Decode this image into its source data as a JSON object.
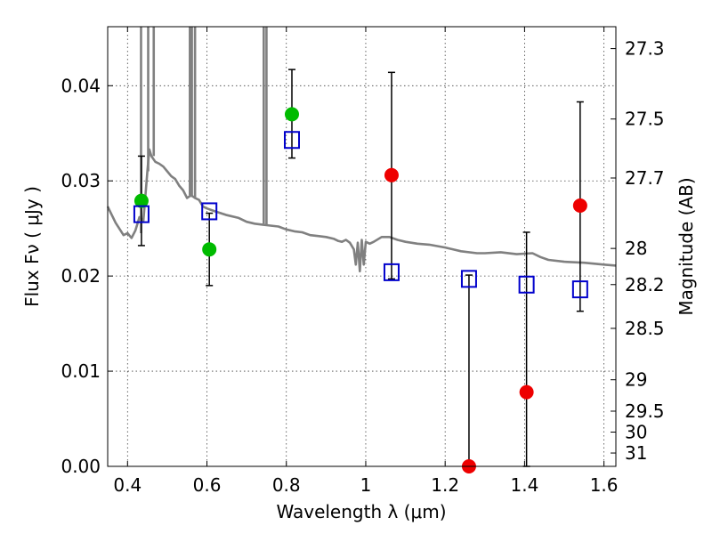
{
  "chart_data": {
    "type": "scatter",
    "xlabel": "Wavelength  λ (μm)",
    "ylabel": "Flux  Fν  ( μJy )",
    "ylabel_right": "Magnitude (AB)",
    "xlim": [
      0.35,
      1.63
    ],
    "ylim": [
      0.0,
      0.0462
    ],
    "grid": true,
    "x_ticks": [
      0.4,
      0.6,
      0.8,
      1.0,
      1.2,
      1.4,
      1.6
    ],
    "x_tick_labels": [
      "0.4",
      "0.6",
      "0.8",
      "1",
      "1.2",
      "1.4",
      "1.6"
    ],
    "y_ticks": [
      0.0,
      0.01,
      0.02,
      0.03,
      0.04
    ],
    "y_tick_labels": [
      "0.00",
      "0.01",
      "0.02",
      "0.03",
      "0.04"
    ],
    "right_ticks": [
      {
        "label": "27.3",
        "flux": 0.0439
      },
      {
        "label": "27.5",
        "flux": 0.0365
      },
      {
        "label": "27.7",
        "flux": 0.0303
      },
      {
        "label": "28",
        "flux": 0.0229
      },
      {
        "label": "28.2",
        "flux": 0.0191
      },
      {
        "label": "28.5",
        "flux": 0.0145
      },
      {
        "label": "29",
        "flux": 0.0091
      },
      {
        "label": "29.5",
        "flux": 0.0058
      },
      {
        "label": "30",
        "flux": 0.0036
      },
      {
        "label": "31",
        "flux": 0.0014
      }
    ],
    "series": [
      {
        "marker": "filled-circle",
        "color": "#00bb00",
        "points": [
          {
            "x": 0.435,
            "y": 0.0279
          },
          {
            "x": 0.606,
            "y": 0.0228
          },
          {
            "x": 0.814,
            "y": 0.037
          }
        ]
      },
      {
        "marker": "filled-circle",
        "color": "#ee0000",
        "points": [
          {
            "x": 1.065,
            "y": 0.0306
          },
          {
            "x": 1.26,
            "y": 0.0
          },
          {
            "x": 1.405,
            "y": 0.0078
          },
          {
            "x": 1.54,
            "y": 0.0274
          }
        ]
      },
      {
        "marker": "open-square",
        "color": "#0000cc",
        "points": [
          {
            "x": 0.435,
            "y": 0.0265
          },
          {
            "x": 0.606,
            "y": 0.0268
          },
          {
            "x": 0.814,
            "y": 0.0343
          },
          {
            "x": 1.065,
            "y": 0.0204
          },
          {
            "x": 1.26,
            "y": 0.0197
          },
          {
            "x": 1.405,
            "y": 0.0191
          },
          {
            "x": 1.54,
            "y": 0.0186
          }
        ]
      }
    ],
    "error_bars": [
      {
        "x": 0.435,
        "low": 0.0232,
        "high": 0.0326
      },
      {
        "x": 0.606,
        "low": 0.019,
        "high": 0.0266
      },
      {
        "x": 0.814,
        "low": 0.0324,
        "high": 0.0417
      },
      {
        "x": 1.065,
        "low": 0.0197,
        "high": 0.0414
      },
      {
        "x": 1.26,
        "low": 0.0,
        "high": 0.0201
      },
      {
        "x": 1.405,
        "low": 0.0,
        "high": 0.0246
      },
      {
        "x": 1.54,
        "low": 0.0163,
        "high": 0.0383
      }
    ],
    "sed_model": {
      "color": "#808080",
      "points": [
        [
          0.35,
          0.0273
        ],
        [
          0.37,
          0.0256
        ],
        [
          0.39,
          0.0243
        ],
        [
          0.4,
          0.0245
        ],
        [
          0.41,
          0.024
        ],
        [
          0.42,
          0.0248
        ],
        [
          0.43,
          0.0262
        ],
        [
          0.44,
          0.0258
        ],
        [
          0.45,
          0.031
        ],
        [
          0.455,
          0.0333
        ],
        [
          0.46,
          0.0326
        ],
        [
          0.47,
          0.032
        ],
        [
          0.48,
          0.0318
        ],
        [
          0.49,
          0.0315
        ],
        [
          0.5,
          0.031
        ],
        [
          0.51,
          0.0305
        ],
        [
          0.52,
          0.0302
        ],
        [
          0.53,
          0.0295
        ],
        [
          0.54,
          0.029
        ],
        [
          0.55,
          0.0282
        ],
        [
          0.56,
          0.0285
        ],
        [
          0.57,
          0.0282
        ],
        [
          0.58,
          0.028
        ],
        [
          0.59,
          0.0273
        ],
        [
          0.6,
          0.0271
        ],
        [
          0.62,
          0.0268
        ],
        [
          0.65,
          0.0264
        ],
        [
          0.68,
          0.0261
        ],
        [
          0.7,
          0.0257
        ],
        [
          0.72,
          0.0255
        ],
        [
          0.74,
          0.0254
        ],
        [
          0.76,
          0.0253
        ],
        [
          0.78,
          0.0252
        ],
        [
          0.8,
          0.0249
        ],
        [
          0.82,
          0.0247
        ],
        [
          0.84,
          0.0246
        ],
        [
          0.86,
          0.0243
        ],
        [
          0.88,
          0.0242
        ],
        [
          0.9,
          0.0241
        ],
        [
          0.92,
          0.0239
        ],
        [
          0.93,
          0.0237
        ],
        [
          0.94,
          0.0236
        ],
        [
          0.95,
          0.0238
        ],
        [
          0.96,
          0.0235
        ],
        [
          0.97,
          0.0228
        ],
        [
          0.975,
          0.0212
        ],
        [
          0.98,
          0.0235
        ],
        [
          0.985,
          0.0205
        ],
        [
          0.99,
          0.0238
        ],
        [
          0.995,
          0.0212
        ],
        [
          1.0,
          0.0236
        ],
        [
          1.01,
          0.0234
        ],
        [
          1.02,
          0.0236
        ],
        [
          1.04,
          0.0241
        ],
        [
          1.06,
          0.0241
        ],
        [
          1.08,
          0.0238
        ],
        [
          1.1,
          0.0236
        ],
        [
          1.13,
          0.0234
        ],
        [
          1.16,
          0.0233
        ],
        [
          1.2,
          0.023
        ],
        [
          1.24,
          0.0226
        ],
        [
          1.28,
          0.0224
        ],
        [
          1.3,
          0.0224
        ],
        [
          1.34,
          0.0225
        ],
        [
          1.38,
          0.0223
        ],
        [
          1.42,
          0.0224
        ],
        [
          1.44,
          0.022
        ],
        [
          1.46,
          0.0217
        ],
        [
          1.5,
          0.0215
        ],
        [
          1.55,
          0.0214
        ],
        [
          1.6,
          0.0212
        ],
        [
          1.63,
          0.0211
        ]
      ],
      "emission_lines": [
        {
          "x": 0.434,
          "base": 0.0245,
          "peak": 0.0462
        },
        {
          "x": 0.452,
          "base": 0.031,
          "peak": 0.0462
        },
        {
          "x": 0.466,
          "base": 0.0326,
          "peak": 0.0462
        },
        {
          "x": 0.557,
          "base": 0.0285,
          "peak": 0.0462
        },
        {
          "x": 0.562,
          "base": 0.0283,
          "peak": 0.0462
        },
        {
          "x": 0.57,
          "base": 0.0282,
          "peak": 0.0462
        },
        {
          "x": 0.743,
          "base": 0.0255,
          "peak": 0.0462
        },
        {
          "x": 0.75,
          "base": 0.0254,
          "peak": 0.0462
        }
      ]
    }
  }
}
